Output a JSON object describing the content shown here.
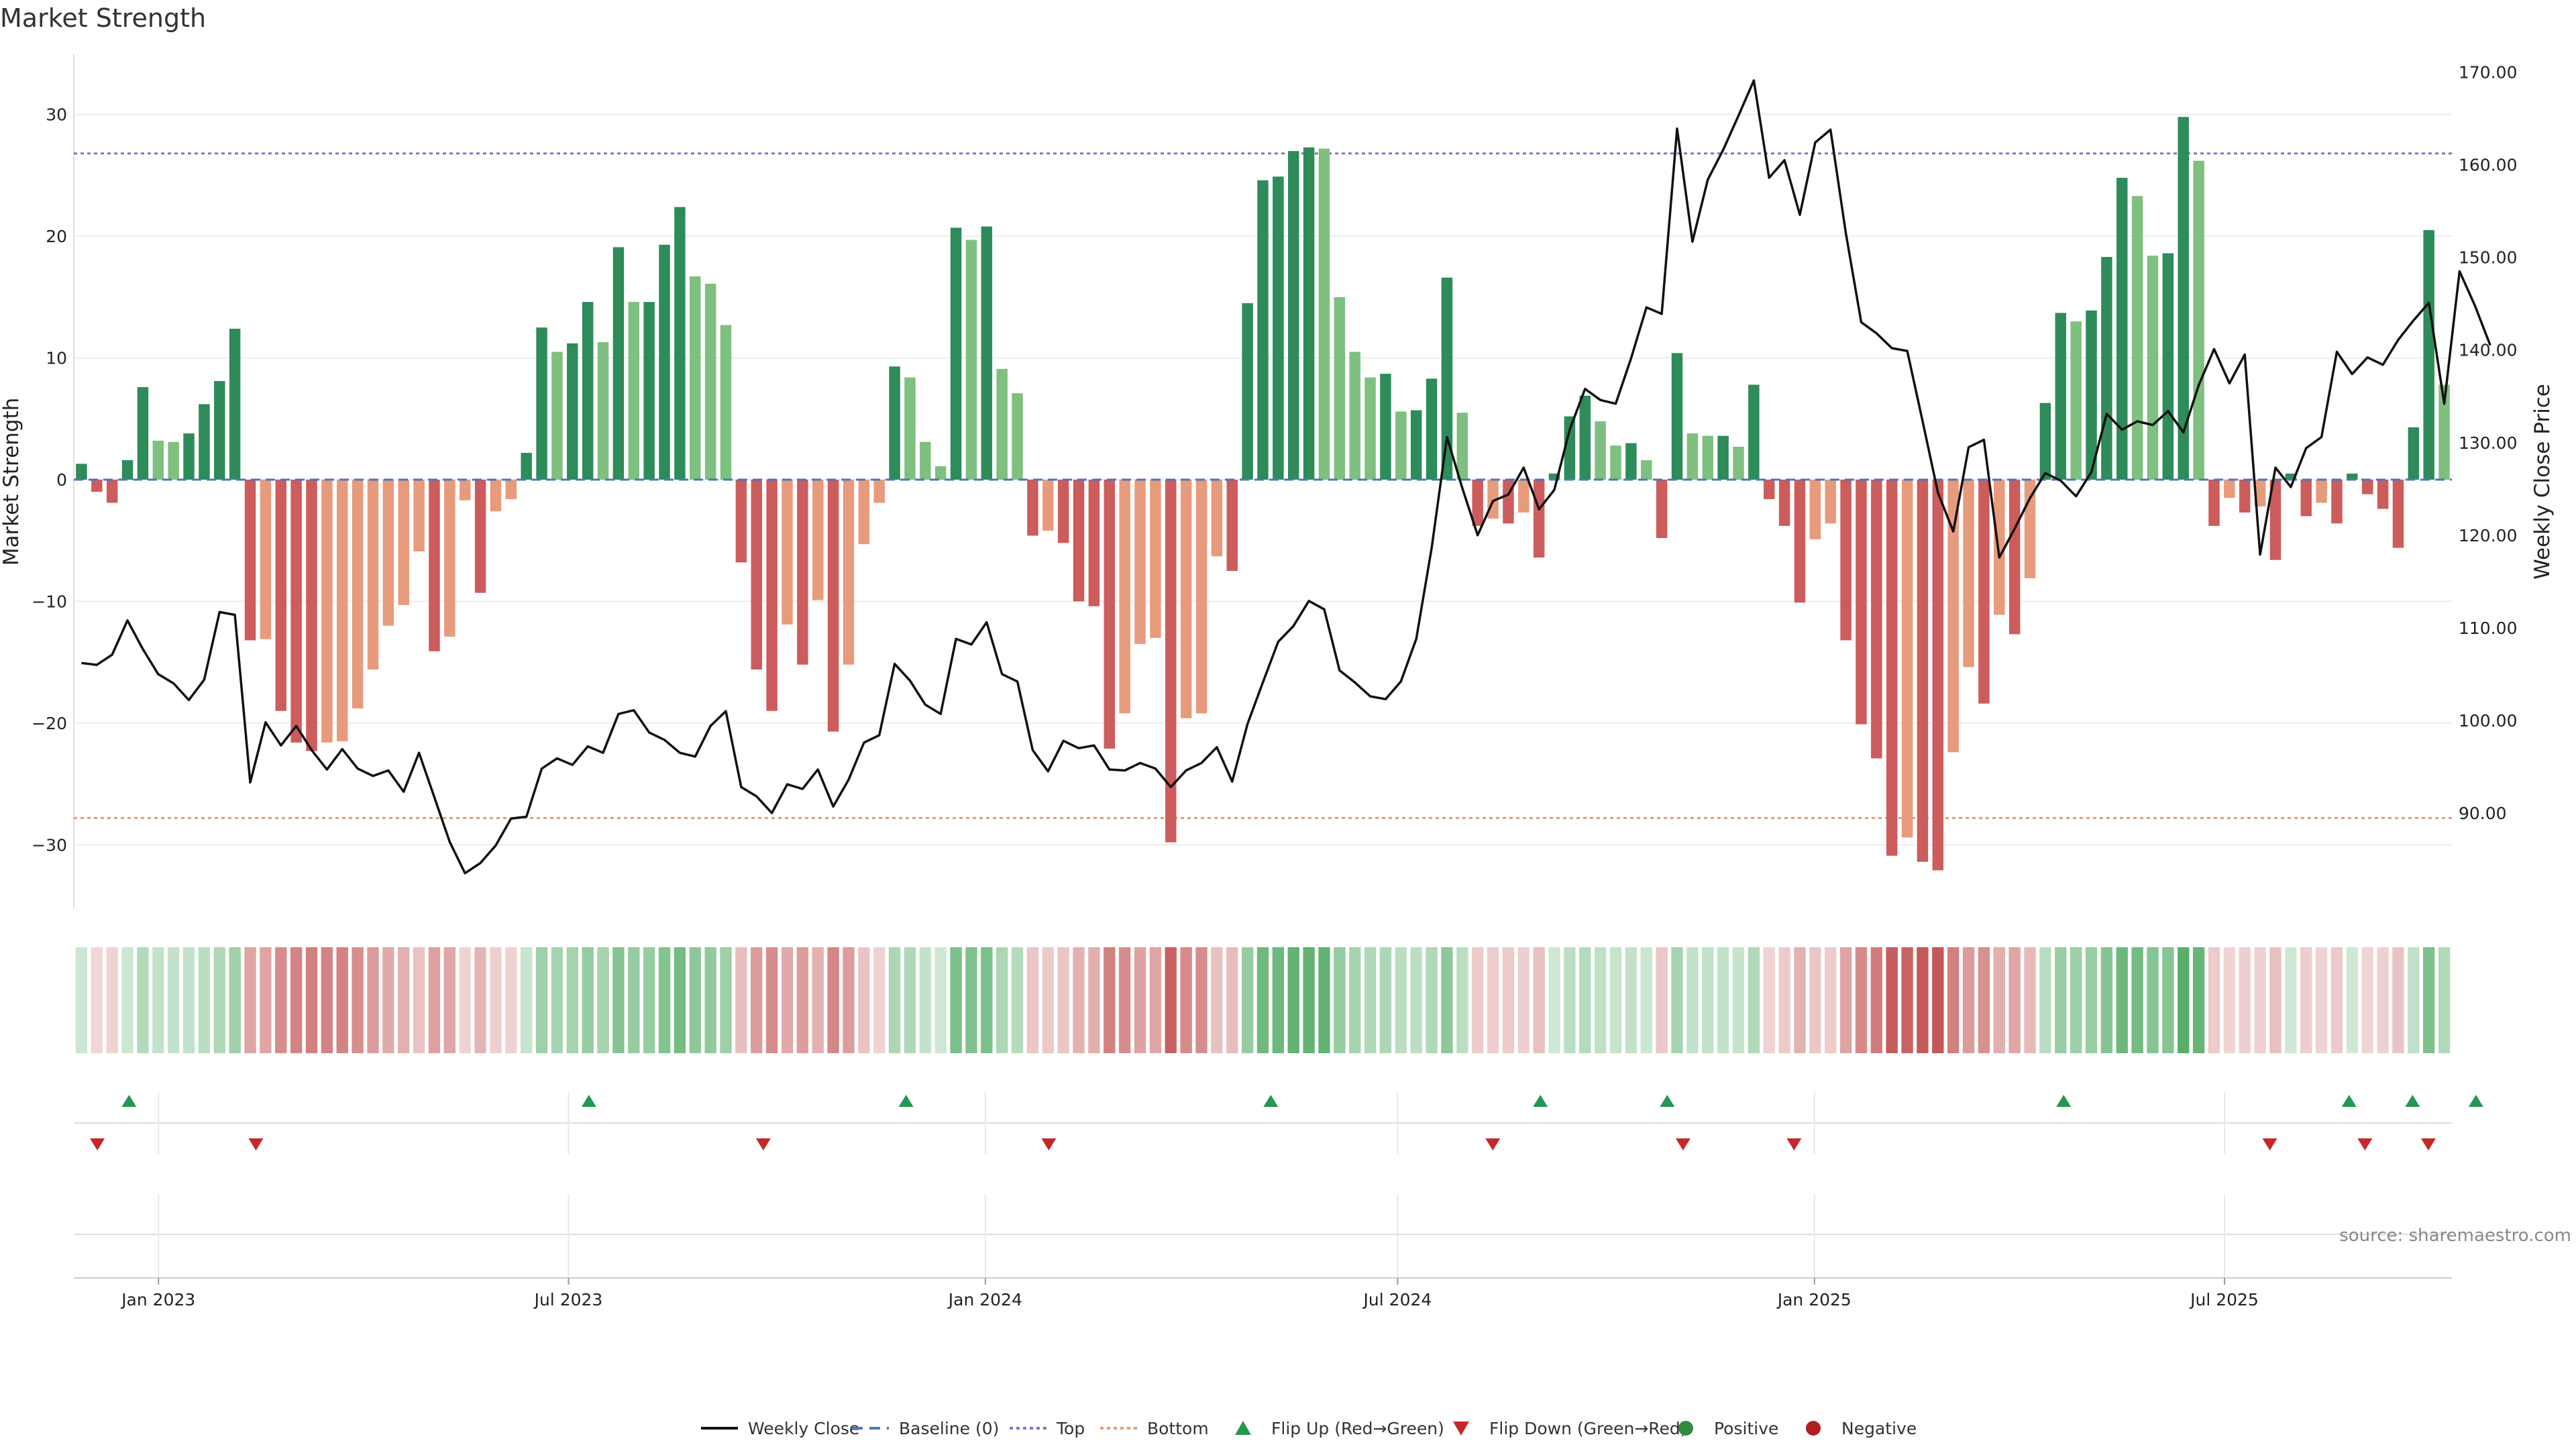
{
  "title": "Market Strength",
  "source": "source: sharemaestro.com",
  "chart_data": {
    "type": "bar",
    "ylabel": "Market Strength",
    "y2label": "Weekly Close Price",
    "ylim": [
      -35,
      35
    ],
    "y2lim": [
      80,
      172
    ],
    "yticks": [
      30,
      20,
      10,
      0,
      -10,
      -20,
      -30
    ],
    "y2ticks": [
      170,
      160,
      150,
      140,
      130,
      120,
      110,
      100,
      90
    ],
    "x_start": "2022-11-28",
    "x_end": "2025-10-06",
    "xticks": [
      {
        "date": "2023-01-01",
        "label": "Jan 2023"
      },
      {
        "date": "2023-07-01",
        "label": "Jul 2023"
      },
      {
        "date": "2024-01-01",
        "label": "Jan 2024"
      },
      {
        "date": "2024-07-01",
        "label": "Jul 2024"
      },
      {
        "date": "2025-01-01",
        "label": "Jan 2025"
      },
      {
        "date": "2025-07-01",
        "label": "Jul 2025"
      }
    ],
    "reference_lines": {
      "baseline": 0,
      "top": 26.8,
      "bottom": -27.8
    },
    "strength": [
      1.3,
      -1,
      -1.9,
      1.6,
      7.6,
      3.2,
      3.1,
      3.8,
      6.2,
      8.1,
      12.4,
      -13.2,
      -13.1,
      -19,
      -21.6,
      -22.3,
      -21.6,
      -21.5,
      -18.8,
      -15.6,
      -12,
      -10.3,
      -5.9,
      -14.1,
      -12.9,
      -1.7,
      -9.3,
      -2.6,
      -1.6,
      2.2,
      12.5,
      10.5,
      11.2,
      14.6,
      11.3,
      19.1,
      14.6,
      14.6,
      19.3,
      22.4,
      16.7,
      16.1,
      12.7,
      -6.8,
      -15.6,
      -19,
      -11.9,
      -15.2,
      -9.9,
      -20.7,
      -15.2,
      -5.3,
      -1.9,
      9.3,
      8.4,
      3.1,
      1.1,
      20.7,
      19.7,
      20.8,
      9.1,
      7.1,
      -4.6,
      -4.2,
      -5.2,
      -10,
      -10.4,
      -22.1,
      -19.2,
      -13.5,
      -13,
      -29.8,
      -19.6,
      -19.2,
      -6.3,
      -7.5,
      14.5,
      24.6,
      24.9,
      27,
      27.3,
      27.2,
      15,
      10.5,
      8.4,
      8.7,
      5.6,
      5.7,
      8.3,
      16.6,
      5.5,
      -3.8,
      -3.2,
      -3.6,
      -2.7,
      -6.4,
      0.5,
      5.2,
      6.9,
      4.8,
      2.8,
      3,
      1.6,
      -4.8,
      10.4,
      3.8,
      3.6,
      3.6,
      2.7,
      7.8,
      -1.6,
      -3.8,
      -10.1,
      -4.9,
      -3.6,
      -13.2,
      -20.1,
      -22.9,
      -30.9,
      -29.4,
      -31.4,
      -32.1,
      -22.4,
      -15.4,
      -18.4,
      -11.1,
      -12.7,
      -8.1,
      6.3,
      13.7,
      13,
      13.9,
      18.3,
      24.8,
      23.3,
      18.4,
      18.6,
      29.8,
      26.2,
      -3.8,
      -1.5,
      -2.7,
      -2.2,
      -6.6,
      0.5,
      -3,
      -1.9,
      -3.6,
      0.5,
      -1.2,
      -2.4,
      -5.6,
      4.3,
      20.5,
      7.8
    ],
    "price": [
      106.2,
      106,
      107.1,
      110.8,
      107.7,
      105,
      104,
      102.2,
      104.4,
      111.7,
      111.4,
      93.3,
      99.8,
      97.3,
      99.4,
      96.8,
      94.7,
      96.9,
      94.8,
      94,
      94.6,
      92.3,
      96.5,
      91.7,
      86.9,
      83.5,
      84.6,
      86.5,
      89.4,
      89.6,
      94.8,
      95.9,
      95.2,
      97.2,
      96.5,
      100.7,
      101.1,
      98.7,
      97.9,
      96.5,
      96.1,
      99.4,
      101,
      92.8,
      91.8,
      90,
      93.1,
      92.6,
      94.7,
      90.7,
      93.6,
      97.6,
      98.4,
      106.1,
      104.3,
      101.7,
      100.7,
      108.8,
      108.2,
      110.6,
      105,
      104.2,
      96.8,
      94.5,
      97.8,
      97,
      97.3,
      94.7,
      94.6,
      95.4,
      94.8,
      92.8,
      94.6,
      95.4,
      97.1,
      93.4,
      99.6,
      104.1,
      108.5,
      110.2,
      112.9,
      112,
      105.4,
      104.1,
      102.6,
      102.3,
      104.2,
      108.8,
      118.6,
      130.6,
      125.1,
      120,
      123.7,
      124.4,
      127.3,
      122.8,
      124.9,
      131.4,
      135.8,
      134.6,
      134.2,
      139.1,
      144.6,
      143.9,
      163.9,
      151.7,
      158.4,
      161.6,
      165.3,
      169.1,
      158.6,
      160.5,
      154.6,
      162.4,
      163.8,
      152.6,
      143,
      141.8,
      140.2,
      139.9,
      132.3,
      124.6,
      120.4,
      129.5,
      130.3,
      117.6,
      120.7,
      124,
      126.7,
      125.9,
      124.2,
      126.8,
      133.1,
      131.4,
      132.3,
      131.9,
      133.4,
      131.1,
      136.2,
      140.1,
      136.4,
      139.5,
      117.9,
      127.3,
      125.2,
      129.4,
      130.6,
      139.8,
      137.4,
      139.2,
      138.4,
      141.1,
      143.2,
      145.1,
      134.2,
      148.5,
      144.8,
      140.5
    ],
    "flip_up": [
      "2022-12-19",
      "2023-07-10",
      "2023-11-27",
      "2024-05-06",
      "2024-09-02",
      "2024-10-28",
      "2025-04-21",
      "2025-08-25",
      "2025-09-22",
      "2025-10-20"
    ],
    "flip_down": [
      "2022-12-05",
      "2023-02-13",
      "2023-09-25",
      "2024-01-29",
      "2024-08-12",
      "2024-11-04",
      "2024-12-23",
      "2025-07-21",
      "2025-09-01",
      "2025-09-29"
    ],
    "legend": [
      {
        "label": "Weekly Close",
        "kind": "line",
        "color": "#111111"
      },
      {
        "label": "Baseline (0)",
        "kind": "dash",
        "color": "#4a78c0"
      },
      {
        "label": "Top",
        "kind": "dot",
        "color": "#8e6fc8"
      },
      {
        "label": "Bottom",
        "kind": "dot",
        "color": "#e59a70"
      },
      {
        "label": "Flip Up (Red→Green)",
        "kind": "tri-up",
        "color": "#23984f"
      },
      {
        "label": "Flip Down (Green→Red)",
        "kind": "tri-down",
        "color": "#c62828"
      },
      {
        "label": "Positive",
        "kind": "circle",
        "color": "#2e8b3c"
      },
      {
        "label": "Negative",
        "kind": "circle",
        "color": "#b21e1e"
      }
    ],
    "colors": {
      "pos_strong": "#2e8b5a",
      "pos_weak": "#7fbf80",
      "neg_strong": "#cd5c5c",
      "neg_weak": "#e79b7c",
      "line": "#111111",
      "baseline": "#4a78c0",
      "top": "#8e6fc8",
      "bottom": "#e59a70",
      "flip_up": "#23984f",
      "flip_down": "#c62828"
    }
  }
}
